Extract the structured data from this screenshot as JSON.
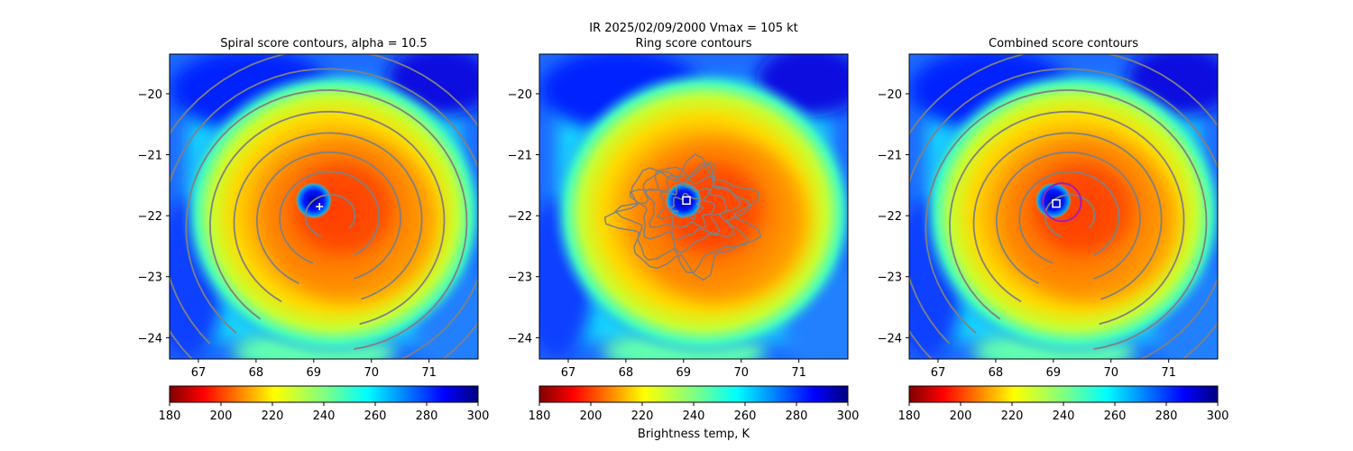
{
  "suptitle": "IR  2025/02/09/2000    Vmax = 105 kt",
  "colorbar_label": "Brightness temp, K",
  "chart_data": [
    {
      "type": "heatmap",
      "title": "Spiral score contours, alpha = 10.5",
      "x_ticks": [
        67,
        68,
        69,
        70,
        71
      ],
      "y_ticks": [
        -20,
        -21,
        -22,
        -23,
        -24
      ],
      "xlim": [
        66.5,
        71.85
      ],
      "ylim": [
        -24.35,
        -19.35
      ],
      "overlay": "spiral-contours",
      "marker": {
        "symbol": "+",
        "x": 69.1,
        "y": -21.85
      },
      "colorbar": {
        "ticks": [
          180,
          200,
          220,
          240,
          260,
          280,
          300
        ],
        "range": [
          180,
          300
        ],
        "colormap": "jet_r"
      }
    },
    {
      "type": "heatmap",
      "title": "Ring score contours",
      "x_ticks": [
        67,
        68,
        69,
        70,
        71
      ],
      "y_ticks": [
        -20,
        -21,
        -22,
        -23,
        -24
      ],
      "xlim": [
        66.5,
        71.85
      ],
      "ylim": [
        -24.35,
        -19.35
      ],
      "overlay": "ring-contours",
      "marker": {
        "symbol": "square",
        "x": 69.05,
        "y": -21.75
      },
      "colorbar": {
        "ticks": [
          180,
          200,
          220,
          240,
          260,
          280,
          300
        ],
        "range": [
          180,
          300
        ],
        "colormap": "jet_r"
      }
    },
    {
      "type": "heatmap",
      "title": "Combined score contours",
      "x_ticks": [
        67,
        68,
        69,
        70,
        71
      ],
      "y_ticks": [
        -20,
        -21,
        -22,
        -23,
        -24
      ],
      "xlim": [
        66.5,
        71.85
      ],
      "ylim": [
        -24.35,
        -19.35
      ],
      "overlay": "spiral-contours",
      "marker": {
        "symbol": "square",
        "x": 69.05,
        "y": -21.8
      },
      "circle": {
        "x": 69.15,
        "y": -21.78,
        "radius_deg": 0.33,
        "color": "#9b20b5"
      },
      "colorbar": {
        "ticks": [
          180,
          200,
          220,
          240,
          260,
          280,
          300
        ],
        "range": [
          180,
          300
        ],
        "colormap": "jet_r"
      }
    }
  ]
}
